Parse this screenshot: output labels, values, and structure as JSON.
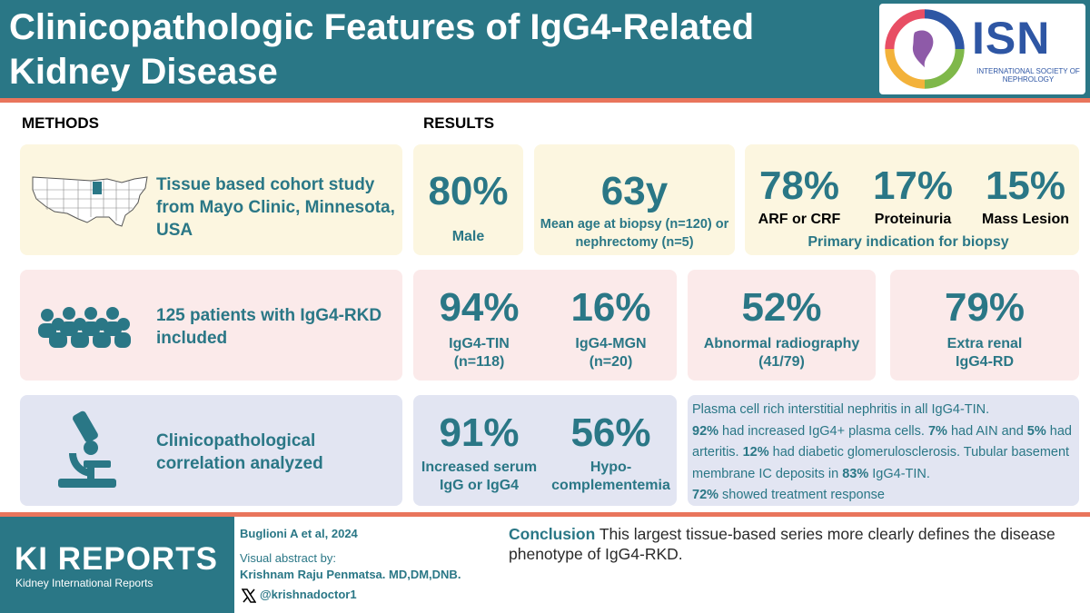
{
  "header": {
    "title": "Clinicopathologic Features of IgG4-Related Kidney Disease",
    "logo": {
      "name": "ISN",
      "subtitle": "INTERNATIONAL SOCIETY OF NEPHROLOGY"
    }
  },
  "sections": {
    "methods": "METHODS",
    "results": "RESULTS"
  },
  "methods": {
    "study": "Tissue based cohort study from Mayo Clinic, Minnesota, USA",
    "patients": "125 patients with IgG4-RKD included",
    "correlation": "Clinicopathological correlation analyzed"
  },
  "results": {
    "male": {
      "value": "80%",
      "label": "Male"
    },
    "age": {
      "value": "63y",
      "label": "Mean age at biopsy (n=120) or nephrectomy (n=5)"
    },
    "indication": {
      "items": [
        {
          "value": "78%",
          "label": "ARF or CRF"
        },
        {
          "value": "17%",
          "label": "Proteinuria"
        },
        {
          "value": "15%",
          "label": "Mass Lesion"
        }
      ],
      "caption": "Primary indication for biopsy"
    },
    "tin": {
      "value": "94%",
      "label": "IgG4-TIN",
      "n": "(n=118)"
    },
    "mgn": {
      "value": "16%",
      "label": "IgG4-MGN",
      "n": "(n=20)"
    },
    "radiography": {
      "value": "52%",
      "label": "Abnormal radiography",
      "n": "(41/79)"
    },
    "extrarenal": {
      "value": "79%",
      "label": "Extra renal",
      "label2": "IgG4-RD"
    },
    "serum": {
      "value": "91%",
      "label": "Increased serum",
      "label2": "IgG or IgG4"
    },
    "hypo": {
      "value": "56%",
      "label": "Hypo-",
      "label2": "complementemia"
    },
    "pathology": {
      "intro": "Plasma cell rich interstitial nephritis in all IgG4-TIN.",
      "p1_pct": "92%",
      "p1_text": " had increased IgG4+ plasma cells. ",
      "p2_pct": "7%",
      "p2_text": " had AIN and ",
      "p3_pct": "5%",
      "p3_text": " had arteritis. ",
      "p4_pct": "12%",
      "p4_text": " had diabetic glomerulosclerosis. Tubular basement membrane IC deposits in ",
      "p5_pct": "83%",
      "p5_text": " IgG4-TIN.",
      "p6_pct": "72%",
      "p6_text": " showed treatment response"
    }
  },
  "footer": {
    "brand": "KI REPORTS",
    "brand_sub": "Kidney International Reports",
    "citation": "Buglioni A et al, 2024",
    "va_label": "Visual abstract by:",
    "author": "Krishnam Raju Penmatsa. MD,DM,DNB.",
    "handle": "@krishnadoctor1",
    "conclusion_head": "Conclusion",
    "conclusion_text": " This largest tissue-based series more clearly defines the disease phenotype of IgG4-RKD."
  },
  "icons": [
    "us-map-icon",
    "people-group-icon",
    "microscope-icon",
    "x-logo-icon",
    "isn-logo-icon"
  ],
  "colors": {
    "primary": "#2a7786",
    "accent": "#e9755c",
    "yellow_bg": "#fcf6e0",
    "pink_bg": "#fbeaea",
    "blue_bg": "#e2e5f2",
    "isn_blue": "#2e56a4"
  }
}
